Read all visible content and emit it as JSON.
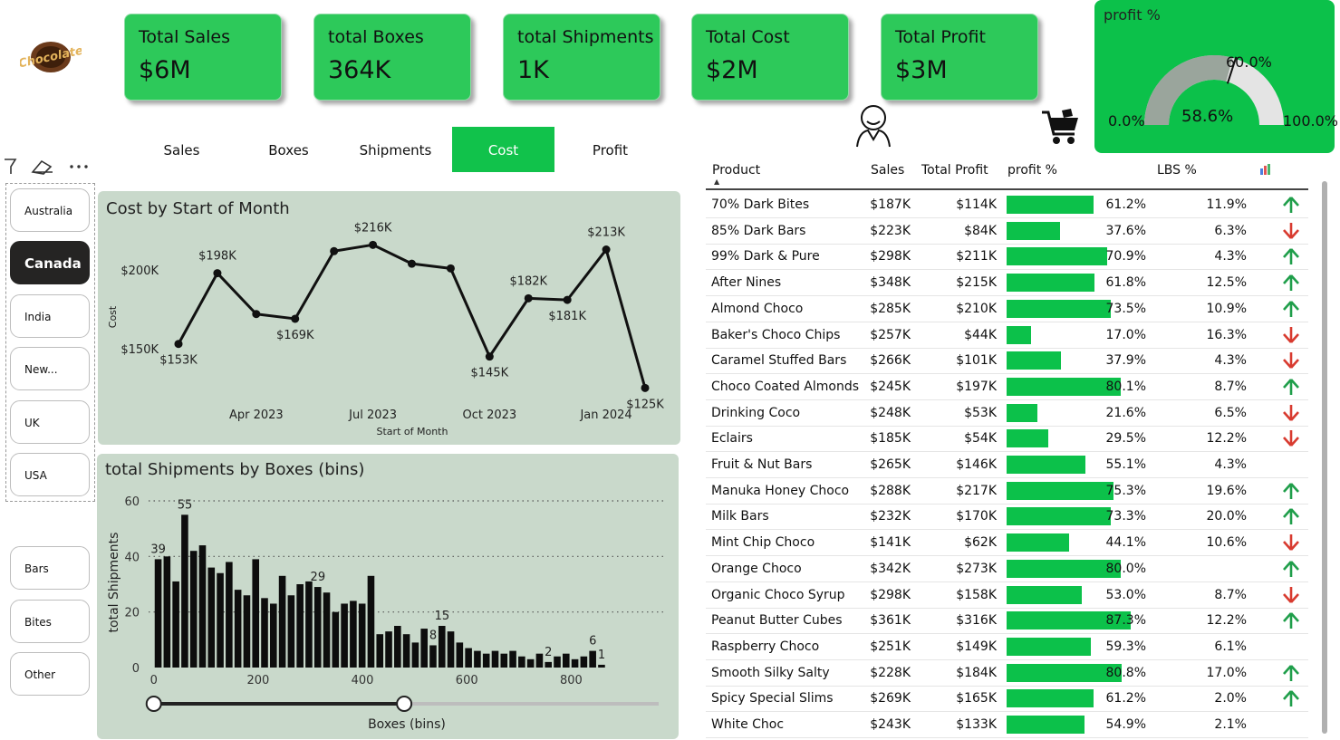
{
  "kpis": [
    {
      "label": "Total Sales",
      "value": "$6M"
    },
    {
      "label": "total Boxes",
      "value": "364K"
    },
    {
      "label": "total Shipments",
      "value": "1K"
    },
    {
      "label": "Total Cost",
      "value": "$2M"
    },
    {
      "label": "Total Profit",
      "value": "$3M"
    }
  ],
  "logo_text": "Chocolate",
  "gauge": {
    "title": "profit %",
    "value": "58.6%",
    "min": "0.0%",
    "max": "100.0%",
    "target": "60.0%",
    "value_num": 58.6,
    "target_num": 60.0
  },
  "tabs": [
    "Sales",
    "Boxes",
    "Shipments",
    "Cost",
    "Profit"
  ],
  "active_tab": "Cost",
  "countries": [
    "Australia",
    "Canada",
    "India",
    "New...",
    "UK",
    "USA"
  ],
  "selected_country": "Canada",
  "categories": [
    "Bars",
    "Bites",
    "Other"
  ],
  "colors": {
    "accent": "#0cc14a",
    "kpi": "#2dc95a",
    "panel": "#c9d9cb",
    "up": "#1f9e4a",
    "down": "#d83a2f"
  },
  "chart_data": [
    {
      "type": "line",
      "title": "Cost by Start of Month",
      "xlabel": "Start of Month",
      "ylabel": "Cost",
      "x_ticks": [
        "Apr 2023",
        "Jul 2023",
        "Oct 2023",
        "Jan 2024"
      ],
      "y_ticks": [
        "$150K",
        "$200K"
      ],
      "ylim": [
        135,
        230
      ],
      "x": [
        "2023-02",
        "2023-03",
        "2023-04",
        "2023-05",
        "2023-06",
        "2023-07",
        "2023-08",
        "2023-09",
        "2023-10",
        "2023-11",
        "2023-12",
        "2024-01",
        "2024-02"
      ],
      "values": [
        153,
        198,
        172,
        169,
        212,
        216,
        204,
        201,
        145,
        182,
        181,
        213,
        125
      ],
      "labels": [
        "$153K",
        "$198K",
        "",
        "$169K",
        "",
        "$216K",
        "",
        "",
        "$145K",
        "$182K",
        "$181K",
        "$213K",
        "$125K"
      ]
    },
    {
      "type": "bar",
      "title": "total Shipments by Boxes (bins)",
      "xlabel": "Boxes (bins)",
      "ylabel": "total Shipments",
      "x_ticks": [
        "0",
        "200",
        "400",
        "600",
        "800"
      ],
      "y_ticks": [
        "0",
        "20",
        "40",
        "60"
      ],
      "ylim": [
        0,
        60
      ],
      "xlim": [
        -10,
        980
      ],
      "bin_width": 17,
      "values": [
        39,
        40,
        31,
        55,
        42,
        44,
        36,
        34,
        38,
        28,
        26,
        39,
        25,
        23,
        33,
        26,
        30,
        31,
        29,
        27,
        20,
        23,
        24,
        23,
        33,
        12,
        13,
        15,
        12,
        9,
        14,
        8,
        15,
        13,
        9,
        7,
        6,
        5,
        6,
        5,
        6,
        4,
        3,
        5,
        2,
        4,
        5,
        3,
        4,
        6,
        1
      ],
      "data_labels": [
        {
          "index": 0,
          "text": "39"
        },
        {
          "index": 3,
          "text": "55"
        },
        {
          "index": 18,
          "text": "29"
        },
        {
          "index": 32,
          "text": "15"
        },
        {
          "index": 31,
          "text": "8"
        },
        {
          "index": 44,
          "text": "2"
        },
        {
          "index": 49,
          "text": "6"
        },
        {
          "index": 50,
          "text": "1"
        }
      ],
      "slider": {
        "from": 0,
        "to": 480
      }
    }
  ],
  "table": {
    "headers": [
      "Product",
      "Sales",
      "Total Profit",
      "profit %",
      "LBS %"
    ],
    "rows": [
      {
        "product": "70% Dark Bites",
        "sales": "$187K",
        "profit": "$114K",
        "pct": "61.2%",
        "pct_num": 61.2,
        "lbs": "11.9%",
        "trend": "up"
      },
      {
        "product": "85% Dark Bars",
        "sales": "$223K",
        "profit": "$84K",
        "pct": "37.6%",
        "pct_num": 37.6,
        "lbs": "6.3%",
        "trend": "down"
      },
      {
        "product": "99% Dark & Pure",
        "sales": "$298K",
        "profit": "$211K",
        "pct": "70.9%",
        "pct_num": 70.9,
        "lbs": "4.3%",
        "trend": "up"
      },
      {
        "product": "After Nines",
        "sales": "$348K",
        "profit": "$215K",
        "pct": "61.8%",
        "pct_num": 61.8,
        "lbs": "12.5%",
        "trend": "up"
      },
      {
        "product": "Almond Choco",
        "sales": "$285K",
        "profit": "$210K",
        "pct": "73.5%",
        "pct_num": 73.5,
        "lbs": "10.9%",
        "trend": "up"
      },
      {
        "product": "Baker's Choco Chips",
        "sales": "$257K",
        "profit": "$44K",
        "pct": "17.0%",
        "pct_num": 17.0,
        "lbs": "16.3%",
        "trend": "down"
      },
      {
        "product": "Caramel Stuffed Bars",
        "sales": "$266K",
        "profit": "$101K",
        "pct": "37.9%",
        "pct_num": 37.9,
        "lbs": "4.3%",
        "trend": "down"
      },
      {
        "product": "Choco Coated Almonds",
        "sales": "$245K",
        "profit": "$197K",
        "pct": "80.1%",
        "pct_num": 80.1,
        "lbs": "8.7%",
        "trend": "up"
      },
      {
        "product": "Drinking Coco",
        "sales": "$248K",
        "profit": "$53K",
        "pct": "21.6%",
        "pct_num": 21.6,
        "lbs": "6.5%",
        "trend": "down"
      },
      {
        "product": "Eclairs",
        "sales": "$185K",
        "profit": "$54K",
        "pct": "29.5%",
        "pct_num": 29.5,
        "lbs": "12.2%",
        "trend": "down"
      },
      {
        "product": "Fruit & Nut Bars",
        "sales": "$265K",
        "profit": "$146K",
        "pct": "55.1%",
        "pct_num": 55.1,
        "lbs": "4.3%",
        "trend": ""
      },
      {
        "product": "Manuka Honey Choco",
        "sales": "$288K",
        "profit": "$217K",
        "pct": "75.3%",
        "pct_num": 75.3,
        "lbs": "19.6%",
        "trend": "up"
      },
      {
        "product": "Milk Bars",
        "sales": "$232K",
        "profit": "$170K",
        "pct": "73.3%",
        "pct_num": 73.3,
        "lbs": "20.0%",
        "trend": "up"
      },
      {
        "product": "Mint Chip Choco",
        "sales": "$141K",
        "profit": "$62K",
        "pct": "44.1%",
        "pct_num": 44.1,
        "lbs": "10.6%",
        "trend": "down"
      },
      {
        "product": "Orange Choco",
        "sales": "$342K",
        "profit": "$273K",
        "pct": "80.0%",
        "pct_num": 80.0,
        "lbs": "",
        "trend": "up"
      },
      {
        "product": "Organic Choco Syrup",
        "sales": "$298K",
        "profit": "$158K",
        "pct": "53.0%",
        "pct_num": 53.0,
        "lbs": "8.7%",
        "trend": "down"
      },
      {
        "product": "Peanut Butter Cubes",
        "sales": "$361K",
        "profit": "$316K",
        "pct": "87.3%",
        "pct_num": 87.3,
        "lbs": "12.2%",
        "trend": "up"
      },
      {
        "product": "Raspberry Choco",
        "sales": "$251K",
        "profit": "$149K",
        "pct": "59.3%",
        "pct_num": 59.3,
        "lbs": "6.1%",
        "trend": ""
      },
      {
        "product": "Smooth Silky Salty",
        "sales": "$228K",
        "profit": "$184K",
        "pct": "80.8%",
        "pct_num": 80.8,
        "lbs": "17.0%",
        "trend": "up"
      },
      {
        "product": "Spicy Special Slims",
        "sales": "$269K",
        "profit": "$165K",
        "pct": "61.2%",
        "pct_num": 61.2,
        "lbs": "2.0%",
        "trend": "up"
      },
      {
        "product": "White Choc",
        "sales": "$243K",
        "profit": "$133K",
        "pct": "54.9%",
        "pct_num": 54.9,
        "lbs": "2.1%",
        "trend": ""
      }
    ]
  }
}
